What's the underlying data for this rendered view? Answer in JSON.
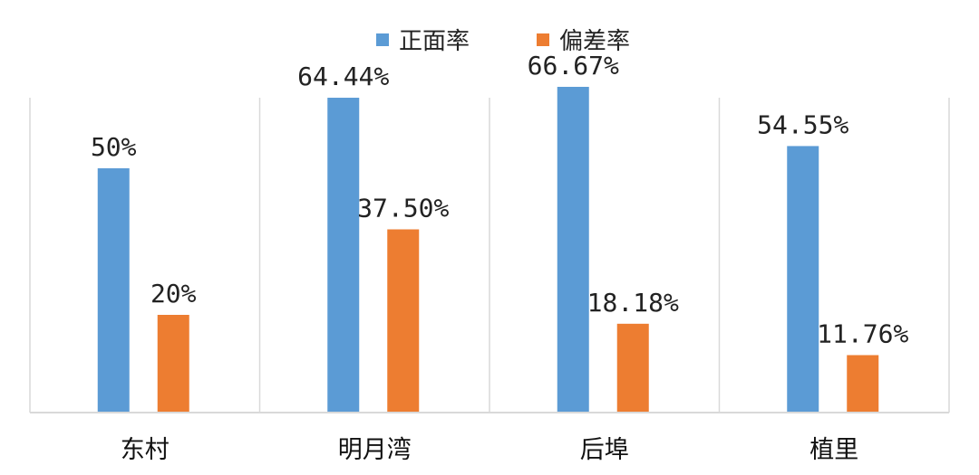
{
  "chart_data": {
    "type": "bar",
    "categories": [
      "东村",
      "明月湾",
      "后埠",
      "植里"
    ],
    "series": [
      {
        "name": "正面率",
        "color": "#5B9BD5",
        "values": [
          50,
          64.44,
          66.67,
          54.55
        ],
        "labels": [
          "50%",
          "64.44%",
          "66.67%",
          "54.55%"
        ]
      },
      {
        "name": "偏差率",
        "color": "#ED7D31",
        "values": [
          20,
          37.5,
          18.18,
          11.76
        ],
        "labels": [
          "20%",
          "37.50%",
          "18.18%",
          "11.76%"
        ]
      }
    ],
    "ylim": [
      0,
      80
    ],
    "legend_position": "top-center",
    "category_separators": true,
    "axis_color": "#D9D9D9"
  }
}
